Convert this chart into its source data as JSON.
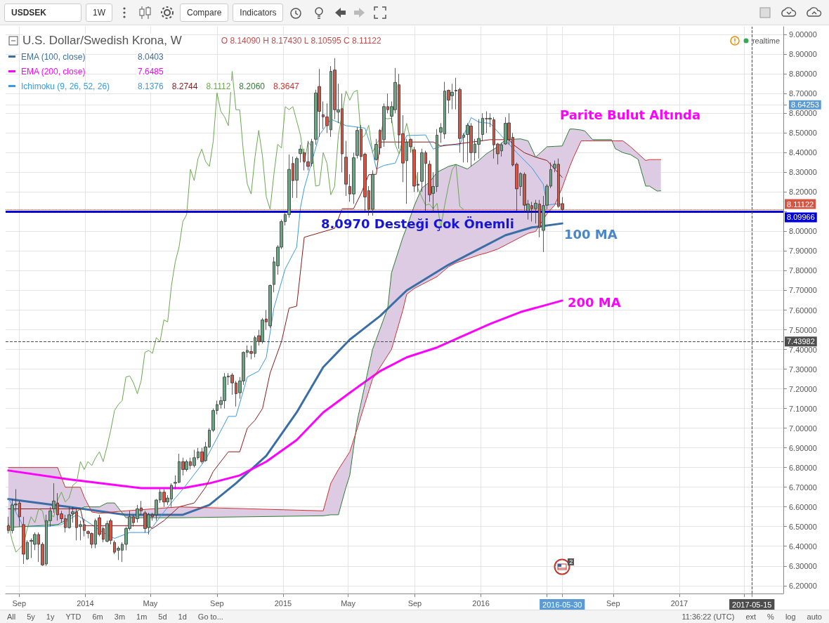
{
  "chart_data": {
    "type": "candlestick",
    "title": "U.S. Dollar/Swedish Krona, W",
    "x": [
      "2013-08-12",
      "2013-08-19",
      "2013-08-26",
      "2013-09-02",
      "2013-09-09",
      "2013-09-16",
      "2013-09-23",
      "2013-09-30",
      "2013-10-07",
      "2013-10-14",
      "2013-10-21",
      "2013-10-28",
      "2013-11-04",
      "2013-11-11",
      "2013-11-18",
      "2013-11-25",
      "2013-12-02",
      "2013-12-09",
      "2013-12-16",
      "2013-12-23",
      "2013-12-30",
      "2014-01-06",
      "2014-01-13",
      "2014-01-20",
      "2014-01-27",
      "2014-02-03",
      "2014-02-10",
      "2014-02-17",
      "2014-02-24",
      "2014-03-03",
      "2014-03-10",
      "2014-03-17",
      "2014-03-24",
      "2014-03-31",
      "2014-04-07",
      "2014-04-14",
      "2014-04-21",
      "2014-04-28",
      "2014-05-05",
      "2014-05-12",
      "2014-05-19",
      "2014-05-26",
      "2014-06-02",
      "2014-06-09",
      "2014-06-16",
      "2014-06-23",
      "2014-06-30",
      "2014-07-07",
      "2014-07-14",
      "2014-07-21",
      "2014-07-28",
      "2014-08-04",
      "2014-08-11",
      "2014-08-18",
      "2014-08-25",
      "2014-09-01",
      "2014-09-08",
      "2014-09-15",
      "2014-09-22",
      "2014-09-29",
      "2014-10-06",
      "2014-10-13",
      "2014-10-20",
      "2014-10-27",
      "2014-11-03",
      "2014-11-10",
      "2014-11-17",
      "2014-11-24",
      "2014-12-01",
      "2014-12-08",
      "2014-12-15",
      "2014-12-22",
      "2014-12-29",
      "2015-01-05",
      "2015-01-12",
      "2015-01-19",
      "2015-01-26",
      "2015-02-02",
      "2015-02-09",
      "2015-02-16",
      "2015-02-23",
      "2015-03-02",
      "2015-03-09",
      "2015-03-16",
      "2015-03-23",
      "2015-03-30",
      "2015-04-06",
      "2015-04-13",
      "2015-04-20",
      "2015-04-27",
      "2015-05-04",
      "2015-05-11",
      "2015-05-18",
      "2015-05-25",
      "2015-06-01",
      "2015-06-08",
      "2015-06-15",
      "2015-06-22",
      "2015-06-29",
      "2015-07-06",
      "2015-07-13",
      "2015-07-20",
      "2015-07-27",
      "2015-08-03",
      "2015-08-10",
      "2015-08-17",
      "2015-08-24",
      "2015-08-31",
      "2015-09-07",
      "2015-09-14",
      "2015-09-21",
      "2015-09-28",
      "2015-10-05",
      "2015-10-12",
      "2015-10-19",
      "2015-10-26",
      "2015-11-02",
      "2015-11-09",
      "2015-11-16",
      "2015-11-23",
      "2015-11-30",
      "2015-12-07",
      "2015-12-14",
      "2015-12-21",
      "2015-12-28",
      "2016-01-04",
      "2016-01-11",
      "2016-01-18",
      "2016-01-25",
      "2016-02-01",
      "2016-02-08",
      "2016-02-15",
      "2016-02-22",
      "2016-02-29",
      "2016-03-07",
      "2016-03-14",
      "2016-03-21",
      "2016-03-28",
      "2016-04-04",
      "2016-04-11",
      "2016-04-18",
      "2016-04-25",
      "2016-05-02",
      "2016-05-09",
      "2016-05-16",
      "2016-05-23",
      "2016-05-30"
    ],
    "ohlc": [
      [
        6.505,
        6.55,
        6.465,
        6.48
      ],
      [
        6.48,
        6.64,
        6.465,
        6.61
      ],
      [
        6.61,
        6.69,
        6.58,
        6.615
      ],
      [
        6.62,
        6.63,
        6.5,
        6.55
      ],
      [
        6.51,
        6.55,
        6.31,
        6.36
      ],
      [
        6.335,
        6.43,
        6.33,
        6.42
      ],
      [
        6.425,
        6.44,
        6.34,
        6.43
      ],
      [
        6.41,
        6.47,
        6.38,
        6.46
      ],
      [
        6.46,
        6.47,
        6.32,
        6.41
      ],
      [
        6.41,
        6.42,
        6.3,
        6.305
      ],
      [
        6.31,
        6.56,
        6.3,
        6.53
      ],
      [
        6.53,
        6.6,
        6.5,
        6.58
      ],
      [
        6.59,
        6.72,
        6.57,
        6.63
      ],
      [
        6.62,
        6.67,
        6.53,
        6.56
      ],
      [
        6.565,
        6.58,
        6.52,
        6.54
      ],
      [
        6.54,
        6.56,
        6.47,
        6.495
      ],
      [
        6.495,
        6.6,
        6.49,
        6.56
      ],
      [
        6.565,
        6.6,
        6.52,
        6.575
      ],
      [
        6.575,
        6.59,
        6.43,
        6.495
      ],
      [
        6.5,
        6.53,
        6.43,
        6.51
      ],
      [
        6.51,
        6.54,
        6.45,
        6.48
      ],
      [
        6.475,
        6.48,
        6.44,
        6.465
      ],
      [
        6.465,
        6.47,
        6.39,
        6.41
      ],
      [
        6.41,
        6.54,
        6.39,
        6.53
      ],
      [
        6.545,
        6.56,
        6.45,
        6.46
      ],
      [
        6.49,
        6.5,
        6.42,
        6.435
      ],
      [
        6.425,
        6.53,
        6.42,
        6.515
      ],
      [
        6.53,
        6.54,
        6.41,
        6.43
      ],
      [
        6.42,
        6.43,
        6.36,
        6.37
      ],
      [
        6.38,
        6.4,
        6.33,
        6.39
      ],
      [
        6.38,
        6.42,
        6.32,
        6.41
      ],
      [
        6.41,
        6.5,
        6.38,
        6.49
      ],
      [
        6.49,
        6.58,
        6.48,
        6.55
      ],
      [
        6.55,
        6.56,
        6.5,
        6.52
      ],
      [
        6.54,
        6.61,
        6.52,
        6.59
      ],
      [
        6.595,
        6.63,
        6.56,
        6.58
      ],
      [
        6.57,
        6.58,
        6.47,
        6.49
      ],
      [
        6.495,
        6.57,
        6.46,
        6.56
      ],
      [
        6.56,
        6.57,
        6.53,
        6.55
      ],
      [
        6.56,
        6.64,
        6.53,
        6.635
      ],
      [
        6.635,
        6.69,
        6.62,
        6.675
      ],
      [
        6.675,
        6.69,
        6.6,
        6.625
      ],
      [
        6.625,
        6.66,
        6.61,
        6.645
      ],
      [
        6.64,
        6.72,
        6.6,
        6.71
      ],
      [
        6.72,
        6.76,
        6.69,
        6.725
      ],
      [
        6.725,
        6.87,
        6.72,
        6.83
      ],
      [
        6.83,
        6.85,
        6.76,
        6.79
      ],
      [
        6.79,
        6.84,
        6.78,
        6.83
      ],
      [
        6.83,
        6.85,
        6.79,
        6.81
      ],
      [
        6.81,
        6.89,
        6.8,
        6.85
      ],
      [
        6.85,
        6.9,
        6.84,
        6.88
      ],
      [
        6.88,
        6.9,
        6.82,
        6.83
      ],
      [
        6.835,
        6.93,
        6.83,
        6.905
      ],
      [
        6.905,
        7.0,
        6.9,
        6.99
      ],
      [
        6.99,
        7.1,
        6.98,
        7.09
      ],
      [
        7.09,
        7.14,
        7.07,
        7.12
      ],
      [
        7.12,
        7.16,
        7.1,
        7.14
      ],
      [
        7.14,
        7.28,
        7.1,
        7.26
      ],
      [
        7.26,
        7.28,
        7.22,
        7.265
      ],
      [
        7.27,
        7.28,
        7.17,
        7.23
      ],
      [
        7.23,
        7.24,
        7.11,
        7.175
      ],
      [
        7.18,
        7.26,
        7.15,
        7.24
      ],
      [
        7.24,
        7.39,
        7.22,
        7.385
      ],
      [
        7.385,
        7.42,
        7.36,
        7.395
      ],
      [
        7.39,
        7.42,
        7.35,
        7.38
      ],
      [
        7.38,
        7.47,
        7.36,
        7.46
      ],
      [
        7.47,
        7.5,
        7.42,
        7.44
      ],
      [
        7.44,
        7.56,
        7.43,
        7.55
      ],
      [
        7.555,
        7.6,
        7.5,
        7.54
      ],
      [
        7.52,
        7.73,
        7.51,
        7.725
      ],
      [
        7.73,
        7.87,
        7.69,
        7.845
      ],
      [
        7.825,
        7.93,
        7.78,
        7.92
      ],
      [
        7.92,
        8.06,
        7.91,
        8.05
      ],
      [
        8.05,
        8.1,
        8.03,
        8.085
      ],
      [
        8.085,
        8.39,
        8.07,
        8.315
      ],
      [
        8.345,
        8.38,
        8.17,
        8.258
      ],
      [
        8.26,
        8.38,
        8.17,
        8.37
      ],
      [
        8.395,
        8.44,
        8.35,
        8.418
      ],
      [
        8.4,
        8.42,
        8.31,
        8.355
      ],
      [
        8.354,
        8.46,
        8.31,
        8.33
      ],
      [
        8.345,
        8.47,
        8.33,
        8.456
      ],
      [
        8.468,
        8.72,
        8.44,
        8.703
      ],
      [
        8.736,
        8.825,
        8.48,
        8.61
      ],
      [
        8.593,
        8.66,
        8.52,
        8.582
      ],
      [
        8.582,
        8.65,
        8.5,
        8.537
      ],
      [
        8.516,
        8.84,
        8.48,
        8.813
      ],
      [
        8.82,
        8.88,
        8.57,
        8.618
      ],
      [
        8.606,
        8.75,
        8.55,
        8.618
      ],
      [
        8.623,
        8.7,
        8.3,
        8.394
      ],
      [
        8.377,
        8.46,
        8.18,
        8.24
      ],
      [
        8.228,
        8.29,
        8.15,
        8.19
      ],
      [
        8.19,
        8.4,
        8.14,
        8.374
      ],
      [
        8.386,
        8.53,
        8.37,
        8.513
      ],
      [
        8.519,
        8.54,
        8.36,
        8.38
      ],
      [
        8.392,
        8.4,
        8.1,
        8.175
      ],
      [
        8.207,
        8.23,
        8.08,
        8.112
      ],
      [
        8.112,
        8.31,
        8.08,
        8.29
      ],
      [
        8.365,
        8.47,
        8.36,
        8.442
      ],
      [
        8.513,
        8.52,
        8.39,
        8.424
      ],
      [
        8.466,
        8.65,
        8.43,
        8.634
      ],
      [
        8.634,
        8.7,
        8.6,
        8.618
      ],
      [
        8.585,
        8.66,
        8.55,
        8.634
      ],
      [
        8.618,
        8.83,
        8.6,
        8.757
      ],
      [
        8.745,
        8.8,
        8.42,
        8.49
      ],
      [
        8.496,
        8.59,
        8.25,
        8.347
      ],
      [
        8.359,
        8.47,
        8.14,
        8.454
      ],
      [
        8.468,
        8.47,
        8.4,
        8.43
      ],
      [
        8.415,
        8.43,
        8.2,
        8.23
      ],
      [
        8.24,
        8.3,
        8.2,
        8.234
      ],
      [
        8.254,
        8.42,
        8.2,
        8.4
      ],
      [
        8.4,
        8.41,
        8.1,
        8.345
      ],
      [
        8.341,
        8.36,
        8.15,
        8.186
      ],
      [
        8.193,
        8.3,
        8.1,
        8.228
      ],
      [
        8.228,
        8.52,
        8.2,
        8.489
      ],
      [
        8.504,
        8.55,
        8.45,
        8.527
      ],
      [
        8.495,
        8.76,
        8.47,
        8.713
      ],
      [
        8.717,
        8.72,
        8.6,
        8.667
      ],
      [
        8.689,
        8.75,
        8.62,
        8.707
      ],
      [
        8.713,
        8.78,
        8.62,
        8.717
      ],
      [
        8.721,
        8.73,
        8.4,
        8.472
      ],
      [
        8.478,
        8.5,
        8.35,
        8.489
      ],
      [
        8.492,
        8.55,
        8.35,
        8.539
      ],
      [
        8.535,
        8.55,
        8.33,
        8.4
      ],
      [
        8.4,
        8.47,
        8.36,
        8.444
      ],
      [
        8.442,
        8.57,
        8.37,
        8.472
      ],
      [
        8.492,
        8.6,
        8.46,
        8.575
      ],
      [
        8.573,
        8.61,
        8.5,
        8.572
      ],
      [
        8.57,
        8.6,
        8.53,
        8.575
      ],
      [
        8.567,
        8.58,
        8.37,
        8.44
      ],
      [
        8.444,
        8.45,
        8.34,
        8.394
      ],
      [
        8.409,
        8.45,
        8.38,
        8.44
      ],
      [
        8.444,
        8.58,
        8.44,
        8.549
      ],
      [
        8.551,
        8.6,
        8.44,
        8.466
      ],
      [
        8.478,
        8.5,
        8.33,
        8.337
      ],
      [
        8.341,
        8.35,
        8.1,
        8.216
      ],
      [
        8.228,
        8.3,
        8.18,
        8.294
      ],
      [
        8.29,
        8.3,
        8.1,
        8.133
      ],
      [
        8.103,
        8.16,
        8.06,
        8.139
      ],
      [
        8.131,
        8.15,
        8.05,
        8.115
      ],
      [
        8.115,
        8.16,
        8.04,
        8.143
      ],
      [
        8.139,
        8.16,
        7.97,
        8.02
      ],
      [
        8.005,
        8.18,
        7.895,
        8.131
      ],
      [
        8.133,
        8.24,
        8.11,
        8.23
      ],
      [
        8.23,
        8.35,
        8.22,
        8.314
      ],
      [
        8.321,
        8.36,
        8.3,
        8.341
      ],
      [
        8.341,
        8.37,
        8.12,
        8.127
      ],
      [
        8.1409,
        8.1743,
        8.10595,
        8.11122
      ]
    ],
    "colors": [
      "#d75442",
      "#6ba583",
      "#6ba583",
      "#d75442",
      "#d75442",
      "#6ba583",
      "#6ba583",
      "#6ba583",
      "#d75442",
      "#d75442",
      "#6ba583",
      "#6ba583",
      "#6ba583",
      "#d75442",
      "#d75442",
      "#d75442",
      "#6ba583",
      "#6ba583",
      "#d75442",
      "#6ba583",
      "#d75442",
      "#d75442",
      "#d75442",
      "#6ba583",
      "#d75442",
      "#d75442",
      "#6ba583",
      "#d75442",
      "#d75442",
      "#6ba583",
      "#6ba583",
      "#6ba583",
      "#6ba583",
      "#d75442",
      "#6ba583",
      "#d75442",
      "#d75442",
      "#6ba583",
      "#d75442",
      "#6ba583",
      "#6ba583",
      "#d75442",
      "#6ba583",
      "#6ba583",
      "#6ba583",
      "#6ba583",
      "#d75442",
      "#6ba583",
      "#d75442",
      "#6ba583",
      "#6ba583",
      "#d75442",
      "#6ba583",
      "#6ba583",
      "#6ba583",
      "#6ba583",
      "#6ba583",
      "#6ba583",
      "#6ba583",
      "#d75442",
      "#d75442",
      "#6ba583",
      "#6ba583",
      "#6ba583",
      "#d75442",
      "#6ba583",
      "#d75442",
      "#6ba583",
      "#d75442",
      "#6ba583",
      "#6ba583",
      "#6ba583",
      "#6ba583",
      "#6ba583",
      "#6ba583",
      "#d75442",
      "#6ba583",
      "#6ba583",
      "#d75442",
      "#d75442",
      "#6ba583",
      "#6ba583",
      "#d75442",
      "#d75442",
      "#d75442",
      "#6ba583",
      "#d75442",
      "#6ba583",
      "#d75442",
      "#d75442",
      "#d75442",
      "#6ba583",
      "#6ba583",
      "#d75442",
      "#d75442",
      "#d75442",
      "#6ba583",
      "#6ba583",
      "#d75442",
      "#6ba583",
      "#d75442",
      "#6ba583",
      "#6ba583",
      "#d75442",
      "#d75442",
      "#6ba583",
      "#d75442",
      "#d75442",
      "#d75442",
      "#6ba583",
      "#d75442",
      "#d75442",
      "#6ba583",
      "#6ba583",
      "#6ba583",
      "#6ba583",
      "#d75442",
      "#6ba583",
      "#6ba583",
      "#d75442",
      "#6ba583",
      "#6ba583",
      "#d75442",
      "#6ba583",
      "#6ba583",
      "#6ba583",
      "#d75442",
      "#6ba583",
      "#d75442",
      "#d75442",
      "#6ba583",
      "#6ba583",
      "#d75442",
      "#d75442",
      "#d75442",
      "#6ba583",
      "#d75442",
      "#6ba583",
      "#d75442",
      "#6ba583",
      "#d75442",
      "#6ba583",
      "#6ba583",
      "#6ba583",
      "#6ba583",
      "#d75442",
      "#d75442"
    ],
    "series": [
      {
        "type": "line",
        "name": "EMA (100, close)",
        "color": "#3a6ea5",
        "x": [
          "2013-08-12",
          "2013-12-02",
          "2014-03-17",
          "2014-06-30",
          "2014-08-18",
          "2014-10-06",
          "2014-12-01",
          "2015-01-26",
          "2015-03-16",
          "2015-05-04",
          "2015-06-29",
          "2015-08-17",
          "2015-11-02",
          "2015-12-28",
          "2016-02-15",
          "2016-04-04",
          "2016-05-30"
        ],
        "values": [
          6.64,
          6.6,
          6.56,
          6.56,
          6.61,
          6.72,
          6.86,
          7.08,
          7.31,
          7.45,
          7.57,
          7.7,
          7.83,
          7.91,
          7.98,
          8.02,
          8.0403
        ]
      },
      {
        "type": "line",
        "name": "EMA (200, close)",
        "color": "#ff00ff",
        "x": [
          "2013-08-12",
          "2013-12-02",
          "2014-04-14",
          "2014-06-30",
          "2014-08-18",
          "2014-10-13",
          "2014-12-01",
          "2015-01-26",
          "2015-03-16",
          "2015-05-04",
          "2015-06-29",
          "2015-08-17",
          "2015-10-12",
          "2015-11-30",
          "2016-01-18",
          "2016-03-14",
          "2016-05-30"
        ],
        "values": [
          6.785,
          6.74,
          6.695,
          6.695,
          6.72,
          6.76,
          6.83,
          6.94,
          7.08,
          7.18,
          7.29,
          7.36,
          7.41,
          7.47,
          7.53,
          7.59,
          7.6485
        ]
      },
      {
        "type": "line",
        "name": "Ichimoku (9, 26, 52, 26)",
        "color": "#3b9ae1",
        "x": [
          "2013-08-12",
          "2013-09-09",
          "2013-10-21",
          "2013-11-18",
          "2013-12-16",
          "2014-01-13",
          "2014-02-03",
          "2014-02-24",
          "2014-03-24",
          "2014-04-28",
          "2014-05-19",
          "2014-06-16",
          "2014-06-30",
          "2014-08-11",
          "2014-09-22",
          "2014-10-06",
          "2014-10-27",
          "2014-11-17",
          "2014-12-01",
          "2014-12-15",
          "2015-01-05",
          "2015-01-26",
          "2015-02-02",
          "2015-02-09",
          "2015-03-09",
          "2015-03-30",
          "2015-04-27",
          "2015-06-01",
          "2015-06-15",
          "2015-06-22",
          "2015-07-06",
          "2015-07-27",
          "2015-08-10",
          "2015-08-17",
          "2015-09-21",
          "2015-10-05",
          "2015-10-12",
          "2015-10-26",
          "2015-11-23",
          "2015-12-14",
          "2015-12-28",
          "2016-01-18",
          "2016-02-22",
          "2016-03-07",
          "2016-04-04",
          "2016-04-25",
          "2016-05-02",
          "2016-05-16",
          "2016-05-30"
        ],
        "values": [
          6.645,
          6.5,
          6.5,
          6.51,
          6.56,
          6.51,
          6.47,
          6.44,
          6.47,
          6.47,
          6.55,
          6.645,
          6.69,
          6.84,
          7.06,
          7.06,
          7.26,
          7.29,
          7.36,
          7.61,
          7.81,
          7.92,
          8.12,
          8.22,
          8.49,
          8.57,
          8.537,
          8.525,
          8.406,
          8.317,
          8.335,
          8.347,
          null,
          8.487,
          8.49,
          8.418,
          null,
          8.44,
          8.44,
          8.578,
          8.555,
          8.549,
          null,
          8.4,
          8.323,
          8.24,
          8.133,
          8.139,
          8.1376
        ]
      },
      {
        "type": "line",
        "color": "#8b1a1a",
        "x": [
          "2013-08-12",
          "2013-12-23",
          "2013-12-30",
          "2014-04-28",
          "2014-05-05",
          "2014-05-26",
          "2014-06-23",
          "2014-07-21",
          "2014-08-11",
          "2014-08-25",
          "2014-09-22",
          "2014-10-13",
          "2014-10-27",
          "2014-11-10",
          "2014-11-24",
          "2014-12-08",
          "2014-12-29",
          "2015-01-12",
          "2015-01-26",
          "2015-02-09",
          "2015-04-06",
          "2015-04-20",
          "2015-05-11",
          "2015-05-25",
          "2015-06-08",
          "2015-06-22",
          "2015-06-29",
          "2015-10-05",
          "2015-10-19",
          "2016-01-18",
          "2016-02-22",
          "2016-02-29",
          "2016-03-21",
          "2016-04-11",
          "2016-05-02",
          "2016-05-30"
        ],
        "values": [
          6.59,
          6.59,
          6.505,
          6.505,
          6.49,
          6.53,
          6.6,
          6.62,
          6.7,
          6.78,
          6.88,
          6.88,
          7.0,
          7.04,
          7.1,
          7.28,
          7.44,
          7.61,
          7.62,
          7.97,
          8.015,
          8.115,
          8.115,
          8.193,
          8.288,
          8.29,
          8.454,
          8.454,
          8.433,
          8.466,
          8.466,
          8.442,
          8.4,
          8.377,
          8.36,
          8.2744
        ]
      },
      {
        "type": "line",
        "color": "#6aa84f",
        "x": [
          "2013-08-12",
          "2013-08-19",
          "2013-08-26",
          "2013-09-02",
          "2013-09-09",
          "2013-09-16",
          "2013-09-23",
          "2013-09-30",
          "2013-10-07",
          "2013-10-14",
          "2013-10-21",
          "2013-10-28",
          "2013-11-04",
          "2013-11-11",
          "2013-11-18",
          "2013-11-25",
          "2013-12-02",
          "2013-12-09",
          "2013-12-16",
          "2013-12-23",
          "2013-12-30",
          "2014-01-06",
          "2014-01-13",
          "2014-01-20",
          "2014-01-27",
          "2014-02-03",
          "2014-02-10",
          "2014-02-17",
          "2014-02-24",
          "2014-03-03",
          "2014-03-10",
          "2014-03-17",
          "2014-03-24",
          "2014-03-31",
          "2014-04-07",
          "2014-04-14",
          "2014-04-21",
          "2014-04-28",
          "2014-05-05",
          "2014-05-12",
          "2014-05-19",
          "2014-05-26",
          "2014-06-02",
          "2014-06-09",
          "2014-06-16",
          "2014-06-23",
          "2014-06-30",
          "2014-07-07",
          "2014-07-14",
          "2014-07-21",
          "2014-07-28",
          "2014-08-04",
          "2014-08-11",
          "2014-08-18",
          "2014-08-25",
          "2014-09-01",
          "2014-09-08",
          "2014-09-15",
          "2014-09-22",
          "2014-09-29",
          "2014-10-06",
          "2014-10-13",
          "2014-10-20",
          "2014-10-27",
          "2014-11-03",
          "2014-11-10",
          "2014-11-17",
          "2014-11-24",
          "2014-12-01",
          "2014-12-08",
          "2014-12-15",
          "2014-12-22",
          "2014-12-29",
          "2015-01-05",
          "2015-01-12",
          "2015-01-19",
          "2015-01-26",
          "2015-02-02",
          "2015-02-09",
          "2015-02-16",
          "2015-02-23",
          "2015-03-02",
          "2015-03-09",
          "2015-03-16",
          "2015-03-23",
          "2015-03-30",
          "2015-04-06",
          "2015-04-13",
          "2015-04-20",
          "2015-04-27",
          "2015-05-04",
          "2015-05-11",
          "2015-05-18",
          "2015-05-25",
          "2015-06-01",
          "2015-06-08",
          "2015-06-15",
          "2015-06-22",
          "2015-06-29",
          "2015-07-06",
          "2015-07-13",
          "2015-07-20",
          "2015-07-27",
          "2015-08-03",
          "2015-08-10",
          "2015-08-17",
          "2015-08-24",
          "2015-08-31",
          "2015-09-07",
          "2015-09-14",
          "2015-09-21",
          "2015-09-28",
          "2015-10-05",
          "2015-10-12",
          "2015-10-19",
          "2015-10-26",
          "2015-11-02",
          "2015-11-09",
          "2015-11-16",
          "2015-11-23",
          "2015-11-30"
        ],
        "values": [
          6.515,
          6.43,
          6.37,
          6.39,
          6.41,
          6.49,
          6.55,
          6.52,
          6.59,
          6.58,
          6.49,
          6.56,
          6.55,
          6.635,
          6.675,
          6.625,
          6.645,
          6.71,
          6.725,
          6.83,
          6.79,
          6.83,
          6.81,
          6.85,
          6.88,
          6.83,
          6.905,
          6.99,
          7.09,
          7.12,
          7.14,
          7.26,
          7.265,
          7.23,
          7.175,
          7.24,
          7.385,
          7.395,
          7.38,
          7.46,
          7.44,
          7.55,
          7.54,
          7.725,
          7.845,
          7.92,
          8.05,
          8.085,
          8.315,
          8.258,
          8.37,
          8.418,
          8.355,
          8.33,
          8.456,
          8.703,
          8.61,
          8.582,
          8.537,
          8.813,
          8.618,
          8.618,
          8.394,
          8.24,
          8.19,
          8.374,
          8.513,
          8.38,
          8.175,
          8.112,
          8.29,
          8.442,
          8.424,
          8.634,
          8.618,
          8.634,
          null,
          8.49,
          8.347,
          8.454,
          8.43,
          8.23,
          8.234,
          8.4,
          8.345,
          8.186,
          8.228,
          8.489,
          null,
          8.713,
          8.667,
          8.707,
          8.717,
          8.472,
          8.489,
          8.539,
          8.4,
          8.444,
          8.472,
          8.575,
          8.572,
          8.575,
          8.44,
          8.394,
          null,
          8.549,
          8.466,
          null,
          8.216,
          null,
          8.133,
          8.139,
          8.115,
          8.143,
          8.02,
          8.131,
          8.23,
          8.314,
          8.341,
          8.127,
          8.11122
        ]
      },
      {
        "type": "line",
        "color": "#2e7d32",
        "x": [
          "2013-08-12",
          "2013-11-11",
          "2013-11-25",
          "2013-12-23",
          "2013-12-30",
          "2014-01-13",
          "2014-01-27",
          "2014-02-10",
          "2014-02-24",
          "2014-03-17",
          "2014-06-23",
          "2015-03-16",
          "2015-03-30",
          "2015-04-13",
          "2015-04-27",
          "2015-05-04",
          "2015-05-18",
          "2015-06-15",
          "2015-07-13",
          "2015-07-20",
          "2015-08-10",
          "2015-08-17",
          "2015-08-31",
          "2015-09-14",
          "2015-09-28",
          "2015-10-12",
          "2015-11-02",
          "2015-11-16",
          "2015-12-07",
          "2015-12-28",
          "2016-01-11",
          "2016-02-01",
          "2016-02-15",
          "2016-03-14",
          "2016-03-28",
          "2016-04-11",
          "2016-05-02",
          "2016-05-16",
          "2016-05-30",
          "2016-06-13",
          "2016-06-20",
          "2016-07-04",
          "2016-07-11",
          "2016-07-25",
          "2016-08-29",
          "2016-09-05",
          "2016-09-19",
          "2016-10-03",
          "2016-10-17",
          "2016-10-31",
          "2016-11-07",
          "2016-11-21",
          "2016-11-28"
        ],
        "values": [
          6.496,
          6.51,
          6.53,
          6.59,
          6.6,
          6.6,
          6.6,
          6.62,
          6.62,
          6.545,
          6.545,
          6.555,
          6.56,
          6.56,
          6.7,
          6.76,
          7.04,
          7.4,
          7.61,
          7.79,
          7.97,
          8.02,
          8.13,
          8.22,
          8.25,
          8.3,
          8.33,
          8.34,
          8.317,
          8.36,
          8.394,
          8.43,
          8.466,
          8.47,
          8.46,
          8.377,
          8.43,
          8.432,
          8.434,
          8.52,
          8.52,
          8.515,
          8.51,
          8.466,
          8.466,
          8.42,
          8.4,
          8.39,
          8.366,
          8.23,
          8.23,
          8.205,
          8.206
        ],
        "lower": [
          6.496,
          6.51,
          6.53,
          6.59,
          6.6,
          6.6,
          6.6,
          6.62,
          6.62,
          6.545,
          6.545,
          6.555,
          6.56,
          6.56,
          6.7,
          6.76,
          7.04,
          7.4,
          7.61,
          7.79,
          7.97,
          8.02,
          8.13,
          8.22,
          8.25,
          8.3,
          8.33,
          8.34,
          8.317,
          8.36,
          8.394,
          8.43,
          8.466,
          8.47,
          8.46,
          8.377,
          8.43,
          8.432,
          8.434,
          8.52,
          8.52,
          8.515,
          8.51,
          8.466,
          8.466,
          8.42,
          8.4,
          8.39,
          8.366,
          8.23,
          8.23,
          8.205,
          8.206
        ],
        "upper": [
          6.8,
          6.8,
          6.7,
          6.7,
          6.65,
          6.574,
          6.568,
          6.57,
          6.575,
          6.58,
          6.6,
          6.58,
          6.72,
          6.79,
          6.85,
          6.88,
          7.0,
          7.25,
          7.37,
          7.4,
          7.6,
          7.68,
          7.71,
          7.73,
          7.75,
          7.77,
          7.82,
          7.84,
          7.86,
          7.88,
          7.89,
          7.91,
          7.93,
          7.97,
          7.99,
          8.0,
          8.09,
          8.133,
          8.223,
          8.33,
          8.377,
          8.46,
          8.46,
          8.46,
          8.46,
          8.46,
          8.46,
          8.43,
          8.395,
          8.36,
          8.3647,
          8.3647,
          8.3647
        ]
      },
      {
        "type": "line",
        "color": "#d32f2f",
        "x": [
          "2013-08-12",
          "2013-11-11",
          "2013-11-25",
          "2013-12-23",
          "2013-12-30",
          "2014-01-13",
          "2014-01-27",
          "2014-02-10",
          "2014-02-24",
          "2014-03-17",
          "2014-06-23",
          "2015-03-16",
          "2015-03-30",
          "2015-04-13",
          "2015-04-27",
          "2015-05-04",
          "2015-05-18",
          "2015-06-15",
          "2015-07-13",
          "2015-07-20",
          "2015-08-10",
          "2015-08-17",
          "2015-08-31",
          "2015-09-14",
          "2015-09-28",
          "2015-10-12",
          "2015-11-02",
          "2015-11-16",
          "2015-12-07",
          "2015-12-28",
          "2016-01-11",
          "2016-02-01",
          "2016-02-15",
          "2016-03-14",
          "2016-03-28",
          "2016-04-11",
          "2016-05-02",
          "2016-05-16",
          "2016-05-30",
          "2016-06-13",
          "2016-06-20",
          "2016-07-04",
          "2016-07-11",
          "2016-07-25",
          "2016-08-29",
          "2016-09-05",
          "2016-09-19",
          "2016-10-03",
          "2016-10-17",
          "2016-10-31",
          "2016-11-07",
          "2016-11-21",
          "2016-11-28"
        ],
        "values": [
          6.8,
          6.8,
          6.7,
          6.7,
          6.65,
          6.574,
          6.568,
          6.57,
          6.575,
          6.58,
          6.6,
          6.58,
          6.72,
          6.79,
          6.85,
          6.88,
          7.0,
          7.25,
          7.37,
          7.4,
          7.6,
          7.68,
          7.71,
          7.73,
          7.75,
          7.77,
          7.82,
          7.84,
          7.86,
          7.88,
          7.89,
          7.91,
          7.93,
          7.97,
          7.99,
          8.0,
          8.09,
          8.133,
          8.223,
          8.33,
          8.377,
          8.46,
          8.46,
          8.46,
          8.46,
          8.46,
          8.46,
          8.43,
          8.395,
          8.36,
          8.3647,
          8.3647,
          8.3647
        ]
      }
    ],
    "xlim": [
      "2013-08-07",
      "2017-07-12"
    ],
    "xticks": [
      {
        "value": "2013-09-01",
        "label": "Sep"
      },
      {
        "value": "2014-01-01",
        "label": "2014"
      },
      {
        "value": "2014-05-01",
        "label": "May"
      },
      {
        "value": "2014-09-01",
        "label": "Sep"
      },
      {
        "value": "2015-01-01",
        "label": "2015"
      },
      {
        "value": "2015-05-01",
        "label": "May"
      },
      {
        "value": "2015-09-01",
        "label": "Sep"
      },
      {
        "value": "2016-01-01",
        "label": "2016"
      },
      {
        "value": "2016-05-01",
        "label": null
      },
      {
        "value": "2016-05-30",
        "label": "2016-05-30"
      },
      {
        "value": "2016-09-01",
        "label": "Sep"
      },
      {
        "value": "2017-01-01",
        "label": "2017"
      },
      {
        "value": "2017-05-01",
        "label": null
      },
      {
        "value": "2017-05-15",
        "label": "2017-05-15"
      }
    ],
    "ylim": [
      6.16,
      9.04
    ],
    "yticks": [
      {
        "value": 6.2,
        "label": "6.20000"
      },
      {
        "value": 6.3,
        "label": "6.30000"
      },
      {
        "value": 6.4,
        "label": "6.40000"
      },
      {
        "value": 6.5,
        "label": "6.50000"
      },
      {
        "value": 6.6,
        "label": "6.60000"
      },
      {
        "value": 6.7,
        "label": "6.70000"
      },
      {
        "value": 6.8,
        "label": "6.80000"
      },
      {
        "value": 6.9,
        "label": "6.90000"
      },
      {
        "value": 7.0,
        "label": "7.00000"
      },
      {
        "value": 7.1,
        "label": "7.10000"
      },
      {
        "value": 7.2,
        "label": "7.20000"
      },
      {
        "value": 7.3,
        "label": "7.30000"
      },
      {
        "value": 7.4,
        "label": "7.40000"
      },
      {
        "value": 7.5,
        "label": "7.50000"
      },
      {
        "value": 7.6,
        "label": "7.60000"
      },
      {
        "value": 7.7,
        "label": "7.70000"
      },
      {
        "value": 7.8,
        "label": "7.80000"
      },
      {
        "value": 7.9,
        "label": "7.90000"
      },
      {
        "value": 8.0,
        "label": "8.00000"
      },
      {
        "value": 8.1,
        "label": null
      },
      {
        "value": 8.2,
        "label": "8.20000"
      },
      {
        "value": 8.3,
        "label": "8.30000"
      },
      {
        "value": 8.4,
        "label": "8.40000"
      },
      {
        "value": 8.5,
        "label": "8.50000"
      },
      {
        "value": 8.6,
        "label": "8.60000"
      },
      {
        "value": 8.64253,
        "label": "8.64253"
      },
      {
        "value": 8.7,
        "label": "8.70000"
      },
      {
        "value": 8.8,
        "label": "8.80000"
      },
      {
        "value": 8.9,
        "label": "8.90000"
      },
      {
        "value": 9.0,
        "label": "9.00000"
      }
    ],
    "ref_lines": [
      {
        "axis": "y",
        "value": 8.11122,
        "label": "8.11122",
        "color": "#d75442",
        "line_style": "dotted"
      },
      {
        "axis": "y",
        "value": 8.09966,
        "label": "8.09966",
        "color": "#0000dd",
        "line_style": "solid"
      },
      {
        "axis": "y",
        "value": 7.43982,
        "label": "7.43982",
        "color": "#4d4d4d",
        "line_style": "dashed"
      },
      {
        "axis": "x",
        "value": "2017-05-15",
        "color": "#4d4d4d",
        "line_style": "dashed"
      }
    ],
    "annotations": [
      "O 8.14090 H 8.17430 L 8.10595 C 8.11122",
      "8.0403",
      "7.6485",
      "8.1376",
      "8.2744",
      "8.1112",
      "8.2060",
      "8.3647",
      "8.0970 Desteği Çok Önemli",
      "100 MA",
      "200 MA",
      "Parite Bulut Altında",
      "realtime",
      "2",
      "USDSEK",
      "1W",
      "Compare",
      "Indicators",
      "All",
      "5y",
      "1y",
      "YTD",
      "6m",
      "3m",
      "1m",
      "5d",
      "1d",
      "Go to...",
      "11:36:22 (UTC)",
      "ext",
      "%",
      "log",
      "auto"
    ],
    "grid": true,
    "legend": "top left",
    "marker": "none",
    "line_style": "solid"
  }
}
